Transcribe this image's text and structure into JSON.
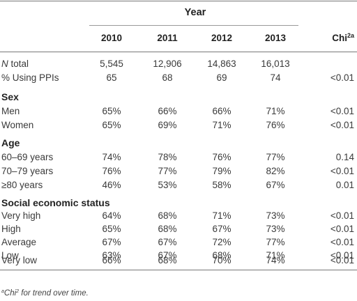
{
  "header": {
    "year_label": "Year",
    "years": [
      "2010",
      "2011",
      "2012",
      "2013"
    ],
    "chi_label": "Chi",
    "chi_sup": "2a"
  },
  "rows": [
    {
      "label": "N total",
      "italic_n": true,
      "values": [
        "5,545",
        "12,906",
        "14,863",
        "16,013"
      ],
      "chi": ""
    },
    {
      "label": "% Using PPIs",
      "values": [
        "65",
        "68",
        "69",
        "74"
      ],
      "chi": "<0.01"
    }
  ],
  "sections": [
    {
      "title": "Sex",
      "rows": [
        {
          "label": "Men",
          "values": [
            "65%",
            "66%",
            "66%",
            "71%"
          ],
          "chi": "<0.01"
        },
        {
          "label": "Women",
          "values": [
            "65%",
            "69%",
            "71%",
            "76%"
          ],
          "chi": "<0.01"
        }
      ]
    },
    {
      "title": "Age",
      "rows": [
        {
          "label": "60–69 years",
          "values": [
            "74%",
            "78%",
            "76%",
            "77%"
          ],
          "chi": "0.14"
        },
        {
          "label": "70–79 years",
          "values": [
            "76%",
            "77%",
            "79%",
            "82%"
          ],
          "chi": "<0.01"
        },
        {
          "label": "≥80 years",
          "values": [
            "46%",
            "53%",
            "58%",
            "67%"
          ],
          "chi": "0.01"
        }
      ]
    },
    {
      "title": "Social economic status",
      "rows": [
        {
          "label": "Very high",
          "values": [
            "64%",
            "68%",
            "71%",
            "73%"
          ],
          "chi": "<0.01"
        },
        {
          "label": "High",
          "values": [
            "65%",
            "68%",
            "67%",
            "73%"
          ],
          "chi": "<0.01"
        },
        {
          "label": "Average",
          "values": [
            "67%",
            "67%",
            "72%",
            "77%"
          ],
          "chi": "<0.01"
        },
        {
          "label": "Low",
          "values": [
            "63%",
            "67%",
            "68%",
            "71%"
          ],
          "chi": "<0.01"
        },
        {
          "label": "Very low",
          "values": [
            "66%",
            "68%",
            "70%",
            "74%"
          ],
          "chi": "<0.01"
        }
      ]
    }
  ],
  "footnote": {
    "sup": "a",
    "chi": "Chi",
    "chi_sup": "2",
    "text": " for trend over time."
  }
}
